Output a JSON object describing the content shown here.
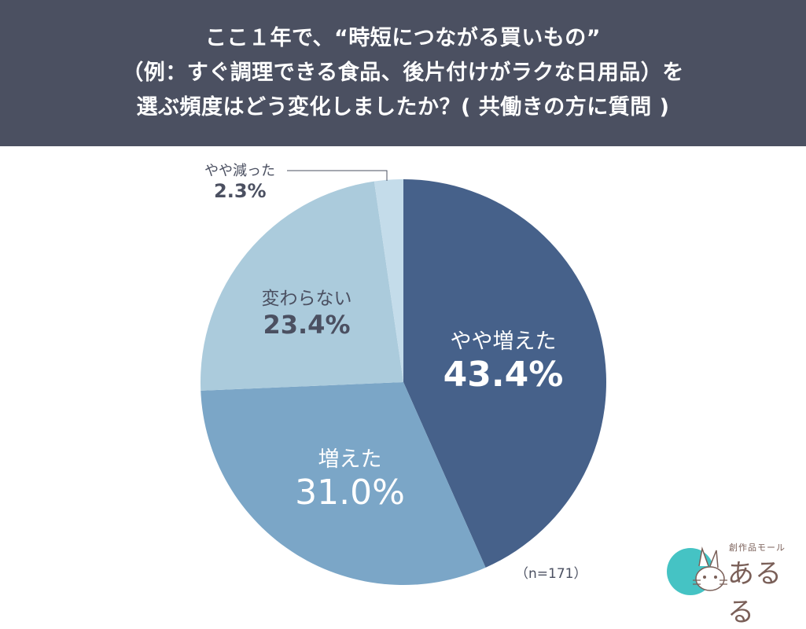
{
  "header": {
    "title_line1": "ここ１年で、“時短につながる買いもの”",
    "title_line2": "（例：すぐ調理できる食品、後片付けがラクな日用品）を",
    "title_line3": "選ぶ頻度はどう変化しましたか？( 共働きの方に質問 )"
  },
  "labels": {
    "slightly_increased": {
      "name": "やや増えた",
      "pct": "43.4%"
    },
    "increased": {
      "name": "増えた",
      "pct": "31.0%"
    },
    "unchanged": {
      "name": "変わらない",
      "pct": "23.4%"
    },
    "slightly_decreased": {
      "name": "やや減った",
      "pct": "2.3%"
    }
  },
  "sample_size": "（n=171）",
  "logo": {
    "subtitle": "創作品モール",
    "name": "あるる",
    "badge_char": "あ"
  },
  "colors": {
    "header_bg": "#4b5061",
    "slice_slightly_increased": "#46618a",
    "slice_increased": "#7ba6c7",
    "slice_unchanged": "#abcbdc",
    "slice_slightly_decreased": "#c4dcea",
    "dark_text": "#4b5061",
    "logo_teal": "#45c3c4",
    "logo_brown": "#7a5f58"
  },
  "chart_data": {
    "type": "pie",
    "title": "ここ１年で、“時短につながる買いもの”（例：すぐ調理できる食品、後片付けがラクな日用品）を選ぶ頻度はどう変化しましたか？( 共働きの方に質問 )",
    "categories": [
      "やや増えた",
      "増えた",
      "変わらない",
      "やや減った"
    ],
    "values": [
      43.4,
      31.0,
      23.4,
      2.3
    ],
    "unit": "%",
    "start_angle_deg": 0,
    "direction": "clockwise",
    "n": 171,
    "legend": "none (labels on slices)"
  }
}
